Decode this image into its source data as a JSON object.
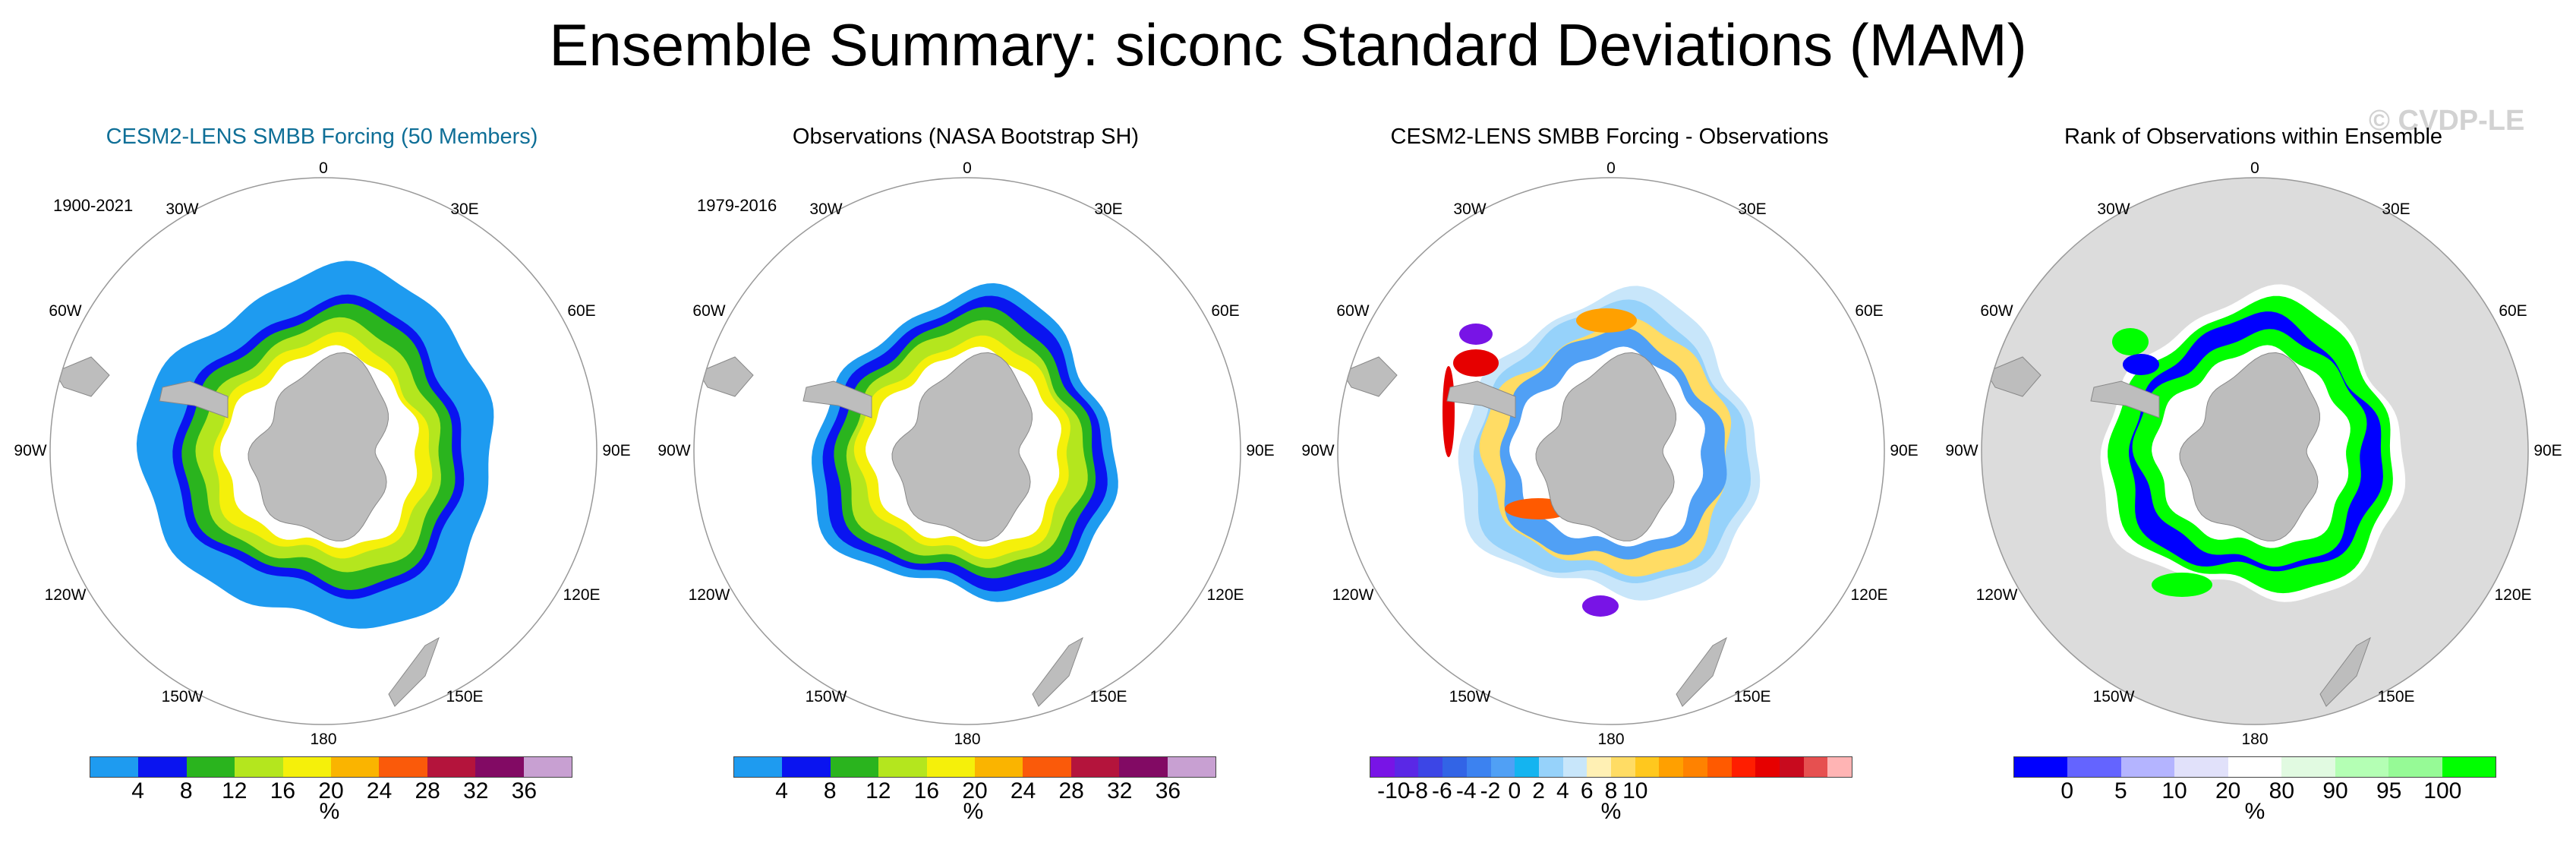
{
  "title": "Ensemble Summary: siconc Standard Deviations (MAM)",
  "watermark": "© CVDP-LE",
  "longitude_labels": {
    "top": "0",
    "bottom": "180",
    "left": "90W",
    "right": "90E",
    "ul30": "30W",
    "ur30": "30E",
    "ul60": "60W",
    "ur60": "60E",
    "ll120": "120W",
    "lr120": "120E",
    "ll150": "150W",
    "lr150": "150E"
  },
  "panels": [
    {
      "title": "CESM2-LENS SMBB Forcing (50 Members)",
      "years": "1900-2021",
      "colorbar": {
        "colors": [
          "#1e9bf0",
          "#0a14f0",
          "#2ab41e",
          "#b4e61e",
          "#f5f00a",
          "#fab400",
          "#fa5a0a",
          "#b4143c",
          "#820a64",
          "#c8a0d2"
        ],
        "ticks": [
          "4",
          "8",
          "12",
          "16",
          "20",
          "24",
          "28",
          "32",
          "36"
        ],
        "units": "%"
      }
    },
    {
      "title": "Observations (NASA Bootstrap SH)",
      "years": "1979-2016",
      "colorbar": {
        "colors": [
          "#1e9bf0",
          "#0a14f0",
          "#2ab41e",
          "#b4e61e",
          "#f5f00a",
          "#fab400",
          "#fa5a0a",
          "#b4143c",
          "#820a64",
          "#c8a0d2"
        ],
        "ticks": [
          "4",
          "8",
          "12",
          "16",
          "20",
          "24",
          "28",
          "32",
          "36"
        ],
        "units": "%"
      }
    },
    {
      "title": "CESM2-LENS SMBB Forcing - Observations",
      "years": "",
      "colorbar": {
        "colors": [
          "#7814e6",
          "#5a28e6",
          "#3c46e6",
          "#3264e6",
          "#3c82f0",
          "#50a0f5",
          "#14b4f0",
          "#96d2fa",
          "#c8e6fa",
          "#fff0b4",
          "#ffdc64",
          "#ffc81e",
          "#ffa000",
          "#ff8200",
          "#ff5a00",
          "#ff1e00",
          "#e60000",
          "#c80a1e",
          "#e65050",
          "#ffb4b4"
        ],
        "ticks": [
          "-10",
          "-8",
          "-6",
          "-4",
          "-2",
          "0",
          "2",
          "4",
          "6",
          "8",
          "10"
        ],
        "units": "%"
      }
    },
    {
      "title": "Rank of Observations within Ensemble",
      "years": "",
      "colorbar": {
        "colors": [
          "#0000ff",
          "#6464ff",
          "#b4b4ff",
          "#e1e1fa",
          "#ffffff",
          "#e1fae1",
          "#b4ffb4",
          "#96fa96",
          "#00ff00"
        ],
        "ticks": [
          "0",
          "5",
          "10",
          "20",
          "80",
          "90",
          "95",
          "100"
        ],
        "units": "%"
      }
    }
  ]
}
